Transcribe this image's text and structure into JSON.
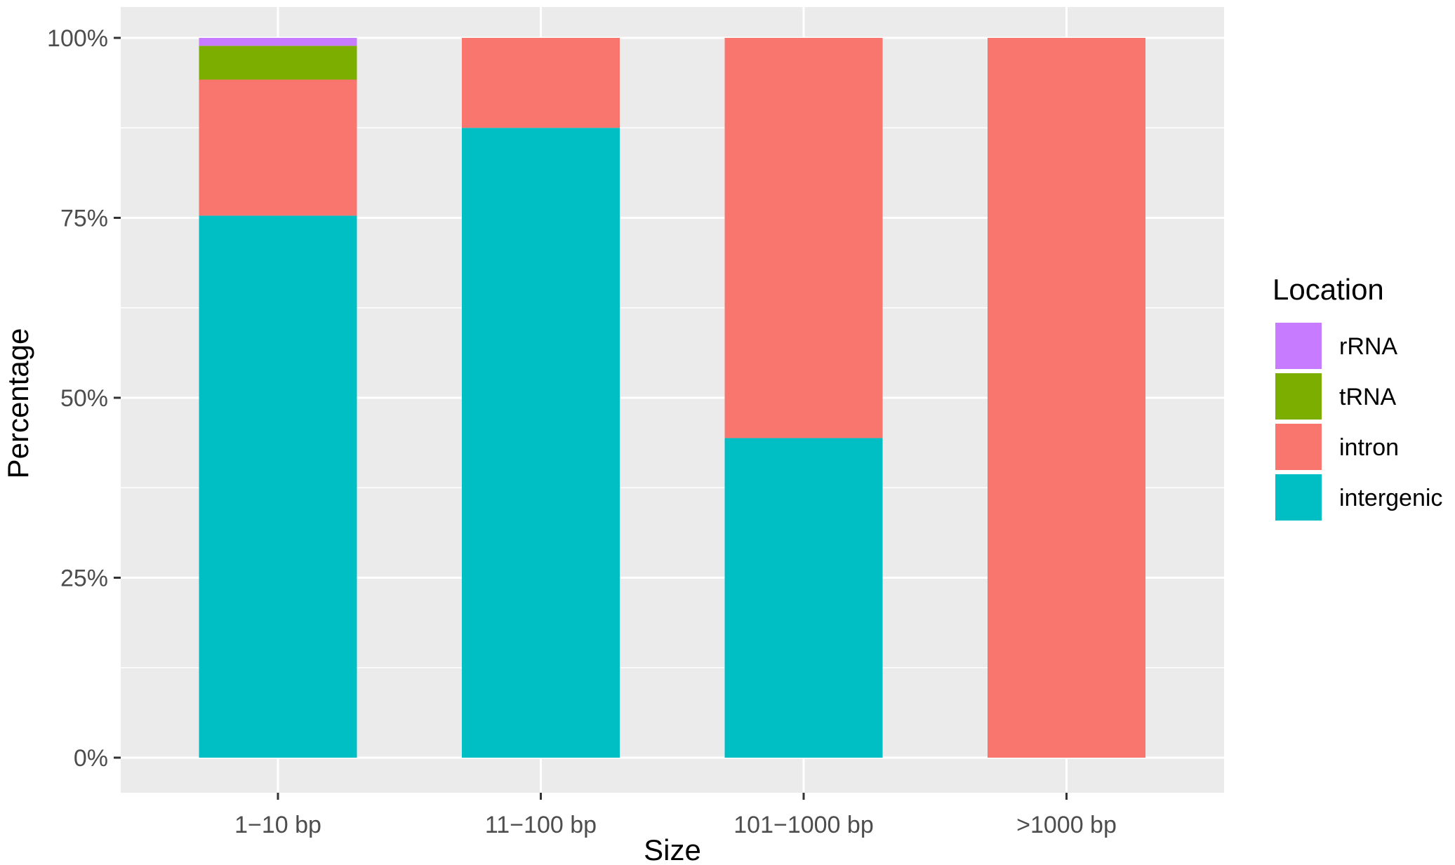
{
  "chart_data": {
    "type": "bar",
    "stacked": true,
    "categories": [
      "1−10 bp",
      "11−100 bp",
      "101−1000 bp",
      ">1000 bp"
    ],
    "series": [
      {
        "name": "intergenic",
        "color": "#00BFC4",
        "values": [
          75.3,
          87.5,
          44.4,
          0
        ]
      },
      {
        "name": "intron",
        "color": "#F8766D",
        "values": [
          18.9,
          12.5,
          55.6,
          100
        ]
      },
      {
        "name": "tRNA",
        "color": "#7CAE00",
        "values": [
          4.7,
          0,
          0,
          0
        ]
      },
      {
        "name": "rRNA",
        "color": "#C77CFF",
        "values": [
          1.1,
          0,
          0,
          0
        ]
      }
    ],
    "title": "",
    "xlabel": "Size",
    "ylabel": "Percentage",
    "ylim": [
      0,
      100
    ],
    "yticks": [
      0,
      25,
      50,
      75,
      100
    ],
    "ytick_labels": [
      "0%",
      "25%",
      "50%",
      "75%",
      "100%"
    ],
    "grid": true,
    "legend": {
      "title": "Location",
      "position": "right",
      "order": [
        "rRNA",
        "tRNA",
        "intron",
        "intergenic"
      ]
    },
    "colors": {
      "panel_background": "#EBEBEB",
      "grid": "#FFFFFF"
    }
  }
}
